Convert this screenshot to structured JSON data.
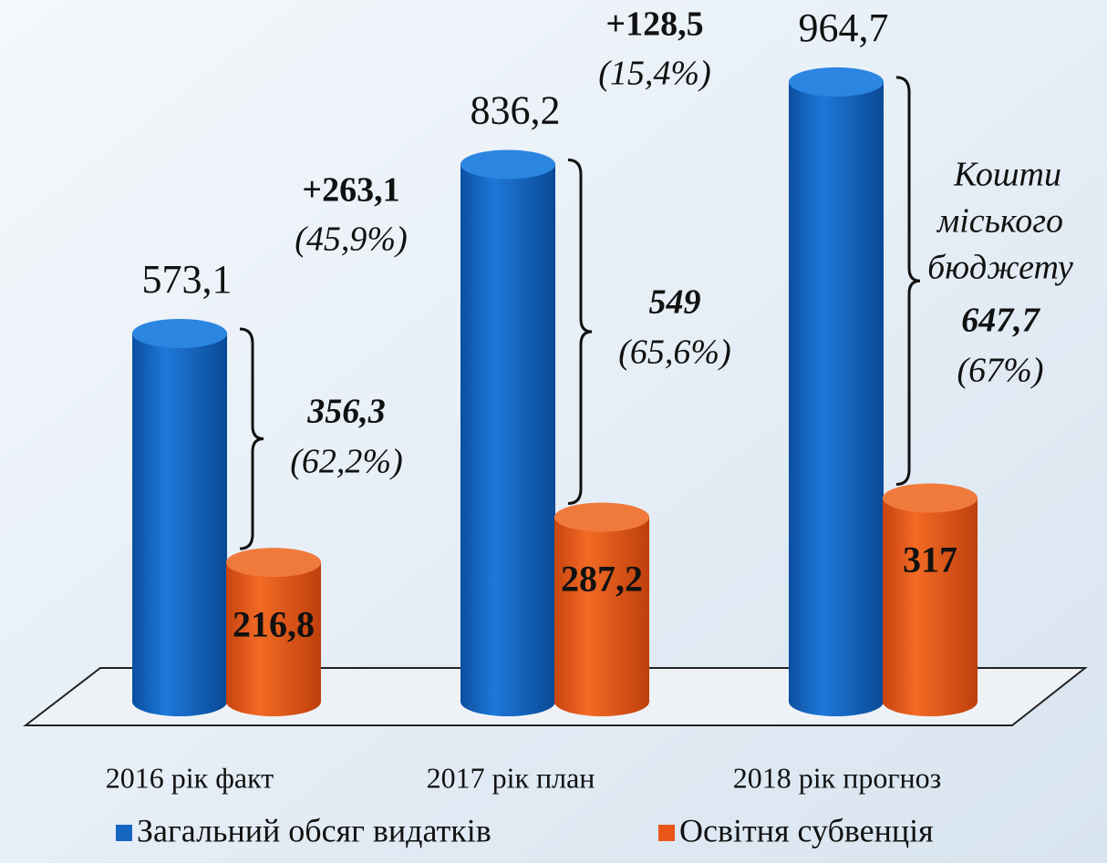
{
  "chart_data": {
    "type": "bar",
    "categories": [
      "2016 рік факт",
      "2017 рік план",
      "2018 рік прогноз"
    ],
    "series": [
      {
        "name": "Загальний обсяг видатків",
        "color": "#1565c0",
        "values": [
          573.1,
          836.2,
          964.7
        ],
        "value_labels": [
          "573,1",
          "836,2",
          "964,7"
        ]
      },
      {
        "name": "Освітня субвенція",
        "color": "#e8561a",
        "values": [
          216.8,
          287.2,
          317
        ],
        "value_labels": [
          "216,8",
          "287,2",
          "317"
        ]
      }
    ],
    "brace_labels": [
      {
        "value": "356,3",
        "share": "(62,2%)"
      },
      {
        "value": "549",
        "share": "(65,6%)"
      },
      {
        "title": [
          "Кошти",
          "міського",
          "бюджету"
        ],
        "value": "647,7",
        "share": "(67%)"
      }
    ],
    "changes": [
      {
        "value": "+263,1",
        "share": "(45,9%)"
      },
      {
        "value": "+128,5",
        "share": "(15,4%)"
      }
    ]
  }
}
